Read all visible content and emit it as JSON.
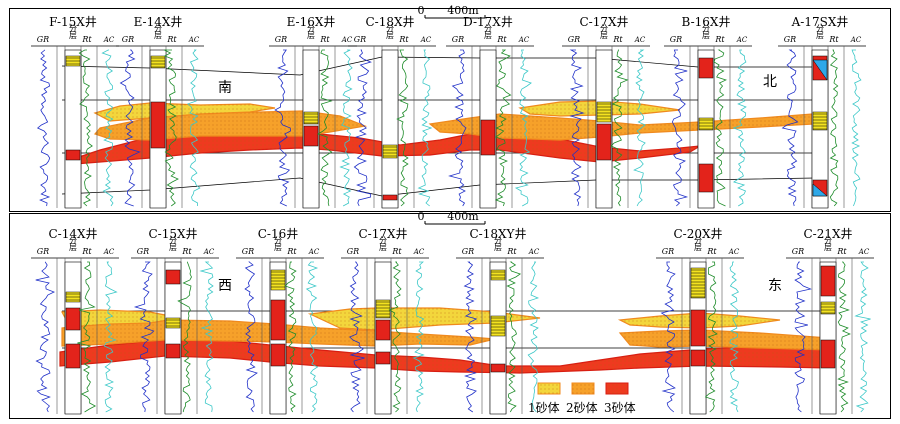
{
  "colors": {
    "sand1_fill": "#F3D63C",
    "sand1_stroke": "#F08A1E",
    "sand2_fill": "#F6A12A",
    "sand3_fill": "#EE3A1F",
    "sand3_stroke": "#D81E12",
    "gr_curve": "#2030C8",
    "rt_curve": "#1E8C2A",
    "ac_curve": "#3CC8C8",
    "layer_yellow": "#F4E320",
    "layer_red": "#E3231B",
    "blue_mark": "#2FA8E8"
  },
  "top_section": {
    "scale": {
      "zero": "0",
      "distance": "400m"
    },
    "wells": [
      {
        "name": "F-15X井"
      },
      {
        "name": "E-14X井"
      },
      {
        "name": "E-16X井"
      },
      {
        "name": "C-18X井"
      },
      {
        "name": "D-17X井"
      },
      {
        "name": "C-17X井"
      },
      {
        "name": "B-16X井"
      },
      {
        "name": "A-17SX井"
      }
    ],
    "direction_left": "南",
    "direction_right": "北"
  },
  "bottom_section": {
    "scale": {
      "zero": "0",
      "distance": "400m"
    },
    "wells": [
      {
        "name": "C-14X井"
      },
      {
        "name": "C-15X井"
      },
      {
        "name": "C-16井"
      },
      {
        "name": "C-17X井"
      },
      {
        "name": "C-18XY井"
      },
      {
        "name": "C-20X井"
      },
      {
        "name": "C-21X井"
      }
    ],
    "direction_left": "西",
    "direction_right": "东"
  },
  "track_labels": {
    "gr": "GR",
    "layer": "分层",
    "rt": "Rt",
    "ac": "AC"
  },
  "legend": {
    "sand1": "1砂体",
    "sand2": "2砂体",
    "sand3": "3砂体"
  }
}
